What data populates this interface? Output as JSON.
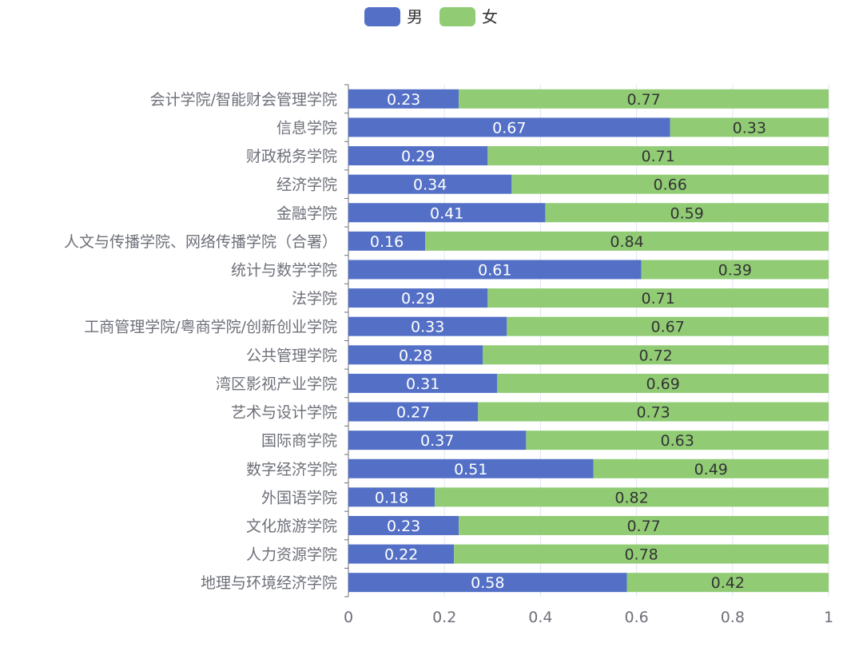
{
  "chart_data": {
    "type": "bar",
    "orientation": "horizontal",
    "stacked": true,
    "categories": [
      "会计学院/智能财会管理学院",
      "信息学院",
      "财政税务学院",
      "经济学院",
      "金融学院",
      "人文与传播学院、网络传播学院（合署）",
      "统计与数学学院",
      "法学院",
      "工商管理学院/粤商学院/创新创业学院",
      "公共管理学院",
      "湾区影视产业学院",
      "艺术与设计学院",
      "国际商学院",
      "数字经济学院",
      "外国语学院",
      "文化旅游学院",
      "人力资源学院",
      "地理与环境经济学院"
    ],
    "series": [
      {
        "name": "男",
        "color": "#5470c6",
        "values": [
          0.23,
          0.67,
          0.29,
          0.34,
          0.41,
          0.16,
          0.61,
          0.29,
          0.33,
          0.28,
          0.31,
          0.27,
          0.37,
          0.51,
          0.18,
          0.23,
          0.22,
          0.58
        ]
      },
      {
        "name": "女",
        "color": "#91cc75",
        "values": [
          0.77,
          0.33,
          0.71,
          0.66,
          0.59,
          0.84,
          0.39,
          0.71,
          0.67,
          0.72,
          0.69,
          0.73,
          0.63,
          0.49,
          0.82,
          0.77,
          0.78,
          0.42
        ]
      }
    ],
    "xlim": [
      0,
      1
    ],
    "xticks": [
      "0",
      "0.2",
      "0.4",
      "0.6",
      "0.8",
      "1"
    ],
    "grid": true,
    "legend_position": "top-center"
  }
}
